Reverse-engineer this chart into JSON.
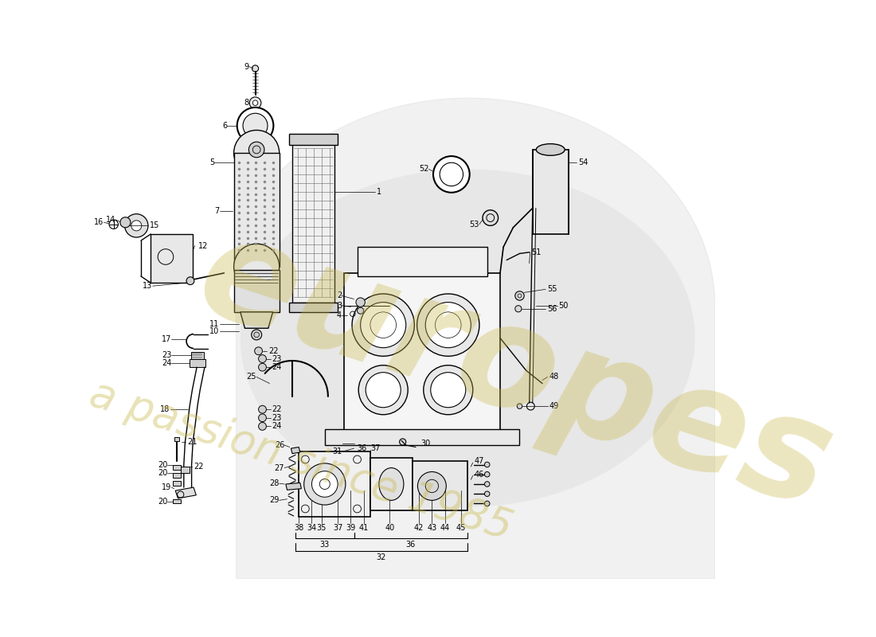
{
  "bg_color": "#ffffff",
  "watermark_color1": "#c8b84a",
  "watermark_color2": "#c8b84a",
  "diagram_color": "#000000",
  "gray_arc_color": "#c8c8c8"
}
